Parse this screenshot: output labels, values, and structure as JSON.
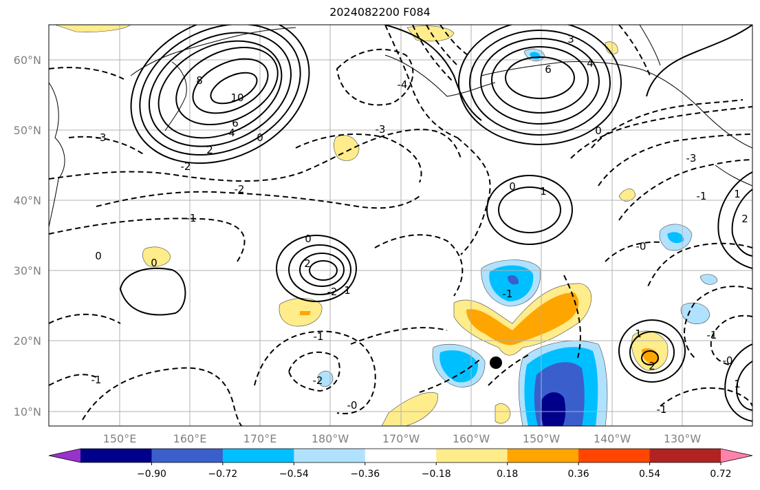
{
  "title": "2024082200 F084",
  "axes": {
    "lat_labels": [
      "60°N",
      "50°N",
      "40°N",
      "30°N",
      "20°N",
      "10°N"
    ],
    "lon_labels": [
      "150°E",
      "160°E",
      "170°E",
      "180°W",
      "170°W",
      "160°W",
      "150°W",
      "140°W",
      "130°W"
    ],
    "gridlines": true
  },
  "colorbar": {
    "colors": [
      "#9932CC",
      "#00008B",
      "#3A5FCD",
      "#00BFFF",
      "#B0E2FF",
      "#FFFFFF",
      "#FFEC8B",
      "#FFA500",
      "#FF4500",
      "#B22222",
      "#FF82AB"
    ],
    "tick_labels": [
      "−0.90",
      "−0.72",
      "−0.54",
      "−0.36",
      "−0.18",
      "0.18",
      "0.36",
      "0.54",
      "0.72",
      "0.90"
    ]
  },
  "contour_labels": [
    {
      "text": "8"
    },
    {
      "text": "10"
    },
    {
      "text": "6"
    },
    {
      "text": "4"
    },
    {
      "text": "2"
    },
    {
      "text": "0"
    },
    {
      "text": "-1"
    },
    {
      "text": "-2"
    },
    {
      "text": "-3"
    },
    {
      "text": "-3"
    },
    {
      "text": "-2"
    },
    {
      "text": "-1"
    },
    {
      "text": "-4"
    },
    {
      "text": "-2"
    },
    {
      "text": "3"
    },
    {
      "text": "4"
    },
    {
      "text": "6"
    },
    {
      "text": "0"
    },
    {
      "text": "-3"
    },
    {
      "text": "-1"
    },
    {
      "text": "0"
    },
    {
      "text": "1"
    },
    {
      "text": "0"
    },
    {
      "text": "2"
    },
    {
      "text": "1"
    },
    {
      "text": "0"
    },
    {
      "text": "-1"
    },
    {
      "text": "-2"
    },
    {
      "text": "-1"
    },
    {
      "text": "-0"
    },
    {
      "text": "0"
    },
    {
      "text": "1"
    },
    {
      "text": "2"
    },
    {
      "text": "-1"
    },
    {
      "text": "-0"
    },
    {
      "text": "1"
    },
    {
      "text": "-1"
    },
    {
      "text": "-0"
    },
    {
      "text": "1"
    },
    {
      "text": "2"
    }
  ],
  "marker": {
    "name": "storm-position-dot",
    "color": "#000000"
  }
}
